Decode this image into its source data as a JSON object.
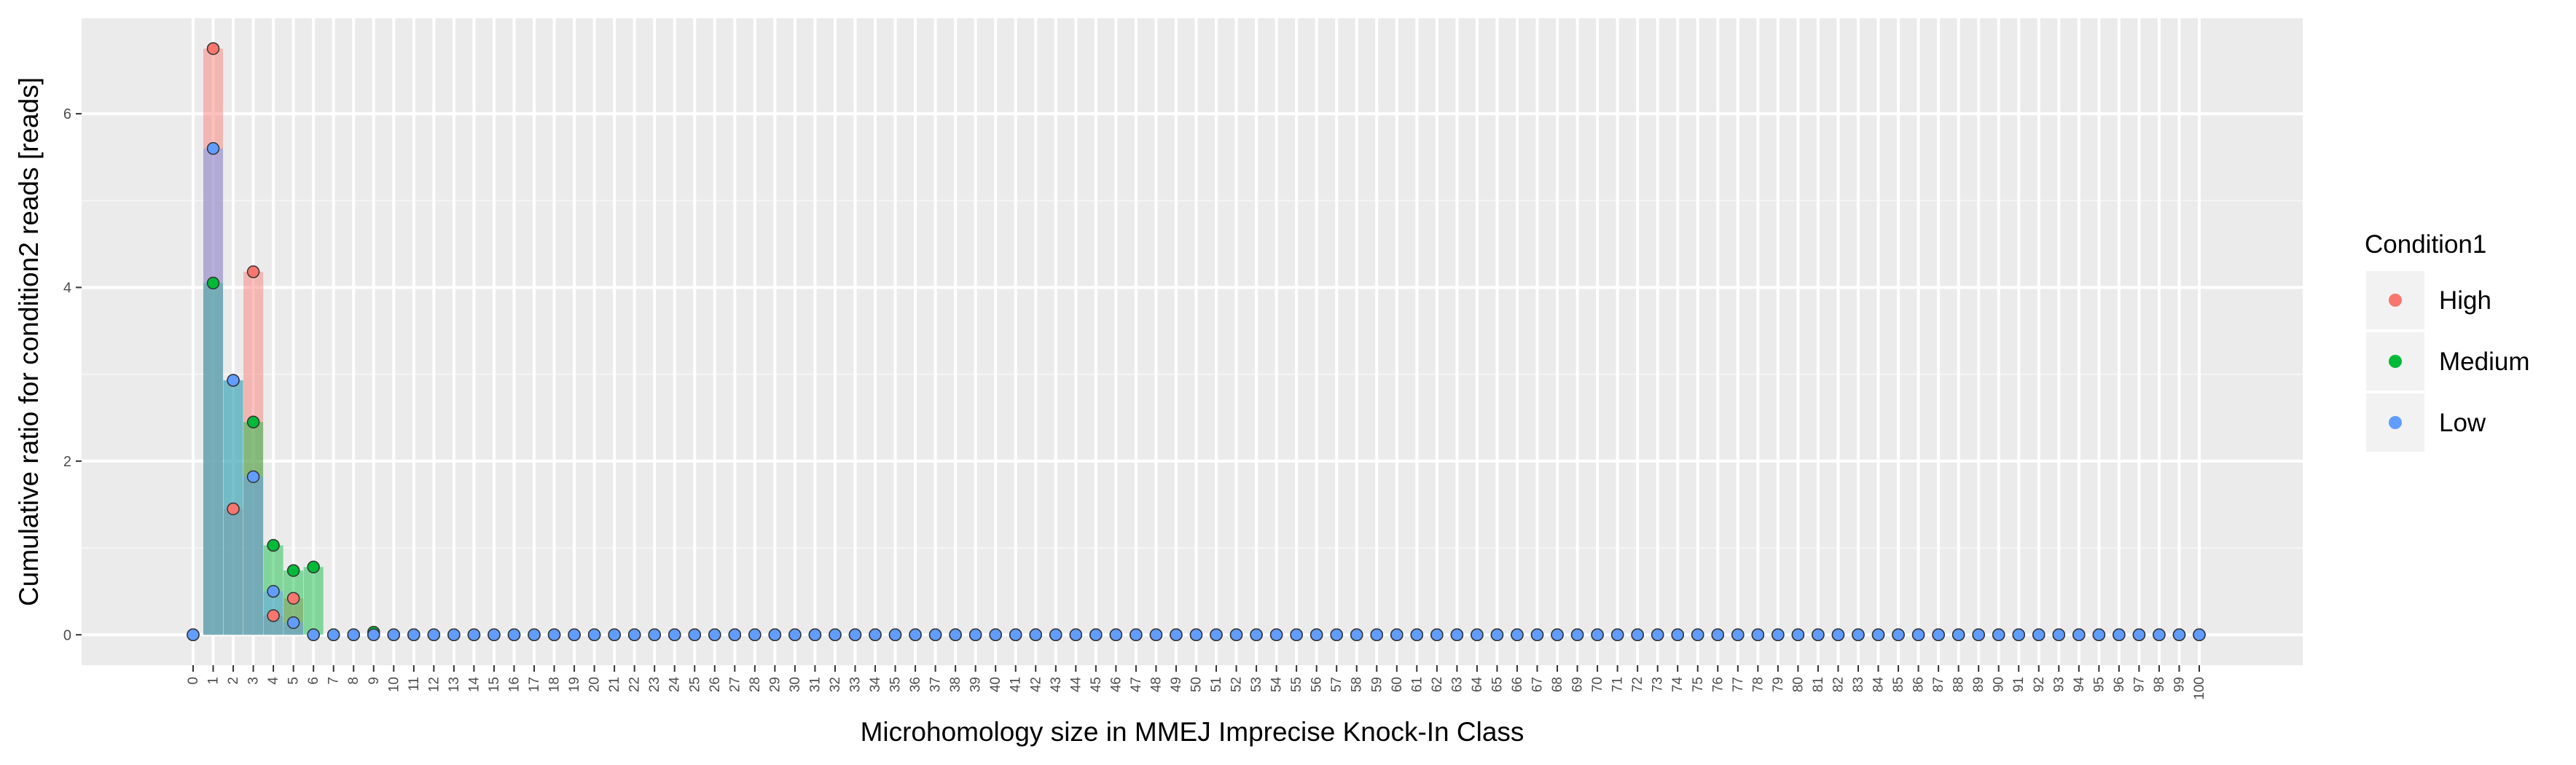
{
  "chart_data": {
    "type": "bar",
    "xlabel": "Microhomology size in MMEJ Imprecise Knock-In Class",
    "ylabel": "Cumulative ratio for condition2 reads [reads]",
    "x_categories": [
      "0",
      "1",
      "2",
      "3",
      "4",
      "5",
      "6",
      "7",
      "8",
      "9",
      "10",
      "11",
      "12",
      "13",
      "14",
      "15",
      "16",
      "17",
      "18",
      "19",
      "20",
      "21",
      "22",
      "23",
      "24",
      "25",
      "26",
      "27",
      "28",
      "29",
      "30",
      "31",
      "32",
      "33",
      "34",
      "35",
      "36",
      "37",
      "38",
      "39",
      "40",
      "41",
      "42",
      "43",
      "44",
      "45",
      "46",
      "47",
      "48",
      "49",
      "50",
      "51",
      "52",
      "53",
      "54",
      "55",
      "56",
      "57",
      "58",
      "59",
      "60",
      "61",
      "62",
      "63",
      "64",
      "65",
      "66",
      "67",
      "68",
      "69",
      "70",
      "71",
      "72",
      "73",
      "74",
      "75",
      "76",
      "77",
      "78",
      "79",
      "80",
      "81",
      "82",
      "83",
      "84",
      "85",
      "86",
      "87",
      "88",
      "89",
      "90",
      "91",
      "92",
      "93",
      "94",
      "95",
      "96",
      "97",
      "98",
      "99",
      "100"
    ],
    "y_ticks": [
      0,
      2,
      4,
      6
    ],
    "ylim": [
      -0.35,
      7.1
    ],
    "grid": true,
    "legend": {
      "title": "Condition1",
      "position": "right",
      "entries": [
        "High",
        "Medium",
        "Low"
      ]
    },
    "colors": {
      "High": "#F8766D",
      "Medium": "#00BA38",
      "Low": "#619CFF"
    },
    "series": [
      {
        "name": "High",
        "values": [
          0,
          6.75,
          1.45,
          4.18,
          0.22,
          0.42,
          0,
          0,
          0,
          0,
          0,
          0,
          0,
          0,
          0,
          0,
          0,
          0,
          0,
          0,
          0,
          0,
          0,
          0,
          0,
          0,
          0,
          0,
          0,
          0,
          0,
          0,
          0,
          0,
          0,
          0,
          0,
          0,
          0,
          0,
          0,
          0,
          0,
          0,
          0,
          0,
          0,
          0,
          0,
          0,
          0,
          0,
          0,
          0,
          0,
          0,
          0,
          0,
          0,
          0,
          0,
          0,
          0,
          0,
          0,
          0,
          0,
          0,
          0,
          0,
          0,
          0,
          0,
          0,
          0,
          0,
          0,
          0,
          0,
          0,
          0,
          0,
          0,
          0,
          0,
          0,
          0,
          0,
          0,
          0,
          0,
          0,
          0,
          0,
          0,
          0,
          0,
          0,
          0,
          0,
          0
        ]
      },
      {
        "name": "Medium",
        "values": [
          0,
          4.05,
          2.93,
          2.45,
          1.03,
          0.74,
          0.78,
          0,
          0,
          0.03,
          0,
          0,
          0,
          0,
          0,
          0,
          0,
          0,
          0,
          0,
          0,
          0,
          0,
          0,
          0,
          0,
          0,
          0,
          0,
          0,
          0,
          0,
          0,
          0,
          0,
          0,
          0,
          0,
          0,
          0,
          0,
          0,
          0,
          0,
          0,
          0,
          0,
          0,
          0,
          0,
          0,
          0,
          0,
          0,
          0,
          0,
          0,
          0,
          0,
          0,
          0,
          0,
          0,
          0,
          0,
          0,
          0,
          0,
          0,
          0,
          0,
          0,
          0,
          0,
          0,
          0,
          0,
          0,
          0,
          0,
          0,
          0,
          0,
          0,
          0,
          0,
          0,
          0,
          0,
          0,
          0,
          0,
          0,
          0,
          0,
          0,
          0,
          0,
          0,
          0,
          0
        ]
      },
      {
        "name": "Low",
        "values": [
          0,
          5.6,
          2.93,
          1.82,
          0.5,
          0.14,
          0,
          0,
          0,
          0,
          0,
          0,
          0,
          0,
          0,
          0,
          0,
          0,
          0,
          0,
          0,
          0,
          0,
          0,
          0,
          0,
          0,
          0,
          0,
          0,
          0,
          0,
          0,
          0,
          0,
          0,
          0,
          0,
          0,
          0,
          0,
          0,
          0,
          0,
          0,
          0,
          0,
          0,
          0,
          0,
          0,
          0,
          0,
          0,
          0,
          0,
          0,
          0,
          0,
          0,
          0,
          0,
          0,
          0,
          0,
          0,
          0,
          0,
          0,
          0,
          0,
          0,
          0,
          0,
          0,
          0,
          0,
          0,
          0,
          0,
          0,
          0,
          0,
          0,
          0,
          0,
          0,
          0,
          0,
          0,
          0,
          0,
          0,
          0,
          0,
          0,
          0,
          0,
          0,
          0,
          0
        ]
      }
    ]
  }
}
